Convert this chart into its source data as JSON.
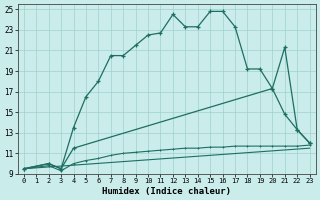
{
  "xlabel": "Humidex (Indice chaleur)",
  "bg_color": "#caecea",
  "grid_color": "#a0d0cc",
  "line_color": "#1e6e62",
  "xlim": [
    -0.5,
    23.5
  ],
  "ylim": [
    9,
    25.5
  ],
  "xticks": [
    0,
    1,
    2,
    3,
    4,
    5,
    6,
    7,
    8,
    9,
    10,
    11,
    12,
    13,
    14,
    15,
    16,
    17,
    18,
    19,
    20,
    21,
    22,
    23
  ],
  "yticks": [
    9,
    11,
    13,
    15,
    17,
    19,
    21,
    23,
    25
  ],
  "line1_x": [
    0,
    2,
    3,
    4,
    5,
    6,
    7,
    8,
    9,
    10,
    11,
    12,
    13,
    14,
    15,
    16,
    17,
    18,
    19,
    20,
    21,
    22,
    23
  ],
  "line1_y": [
    9.5,
    10.0,
    9.5,
    13.5,
    16.5,
    18.0,
    20.5,
    20.5,
    21.5,
    22.5,
    22.7,
    24.5,
    23.3,
    23.3,
    24.8,
    24.8,
    23.3,
    19.2,
    19.2,
    17.3,
    21.3,
    13.3,
    12.0
  ],
  "line2_x": [
    0,
    2,
    3,
    4,
    20,
    21,
    22,
    23
  ],
  "line2_y": [
    9.5,
    10.0,
    9.5,
    11.5,
    17.3,
    14.8,
    13.3,
    12.0
  ],
  "line3_x": [
    0,
    23
  ],
  "line3_y": [
    9.5,
    11.5
  ],
  "line4_x": [
    0,
    2,
    3,
    4,
    5,
    6,
    7,
    8,
    9,
    10,
    11,
    12,
    13,
    14,
    15,
    16,
    17,
    18,
    19,
    20,
    21,
    22,
    23
  ],
  "line4_y": [
    9.5,
    9.8,
    9.3,
    10.0,
    10.3,
    10.5,
    10.8,
    11.0,
    11.1,
    11.2,
    11.3,
    11.4,
    11.5,
    11.5,
    11.6,
    11.6,
    11.7,
    11.7,
    11.7,
    11.7,
    11.7,
    11.7,
    11.8
  ]
}
